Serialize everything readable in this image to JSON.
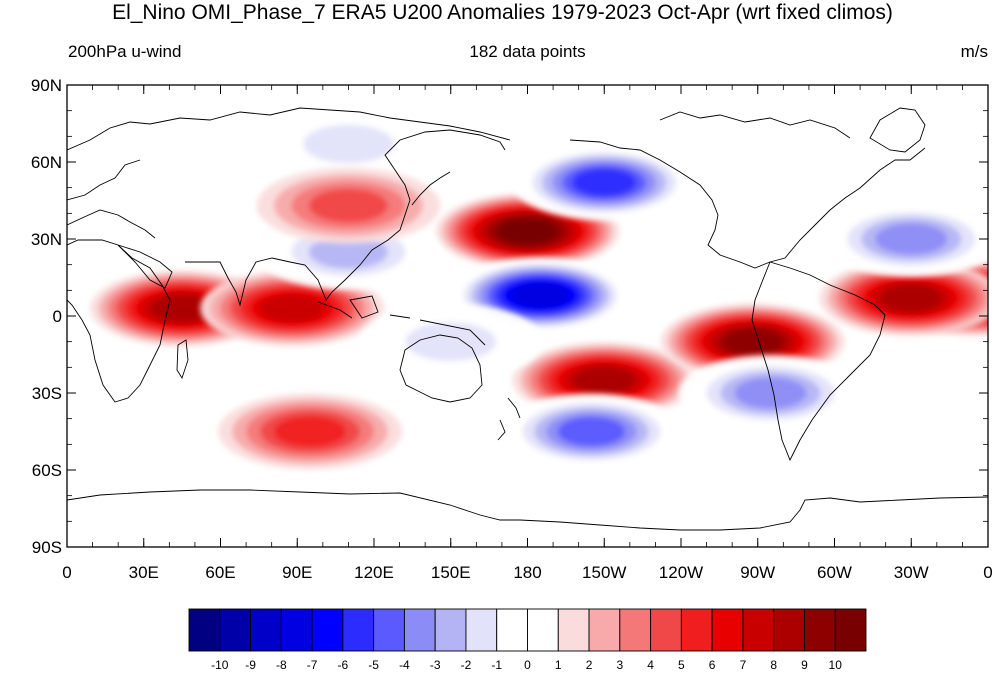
{
  "title": "El_Nino OMI_Phase_7 ERA5 U200 Anomalies 1979-2023 Oct-Apr (wrt fixed climos)",
  "subtitle_left": "200hPa u-wind",
  "subtitle_center": "182 data points",
  "subtitle_right": "m/s",
  "map": {
    "projection": "cylindrical equidistant",
    "lon_range": [
      0,
      360
    ],
    "lat_range": [
      -90,
      90
    ],
    "x_tick_labels": [
      "0",
      "30E",
      "60E",
      "90E",
      "120E",
      "150E",
      "180",
      "150W",
      "120W",
      "90W",
      "60W",
      "30W",
      "0"
    ],
    "y_tick_labels": [
      "90N",
      "60N",
      "30N",
      "0",
      "30S",
      "60S",
      "90S"
    ],
    "field_features": [
      {
        "feature": "westerly anomaly",
        "lon": 355,
        "lat": 7,
        "value": 9
      },
      {
        "feature": "westerly anomaly",
        "lon": 45,
        "lat": 3,
        "value": 8
      },
      {
        "feature": "westerly anomaly",
        "lon": 88,
        "lat": 3,
        "value": 7
      },
      {
        "feature": "westerly anomaly",
        "lon": 180,
        "lat": 33,
        "value": 10
      },
      {
        "feature": "westerly anomaly",
        "lon": 210,
        "lat": -25,
        "value": 8
      },
      {
        "feature": "westerly anomaly",
        "lon": 268,
        "lat": -10,
        "value": 9
      },
      {
        "feature": "westerly anomaly",
        "lon": 330,
        "lat": 7,
        "value": 8
      },
      {
        "feature": "easterly anomaly",
        "lon": 185,
        "lat": 8,
        "value": -9
      },
      {
        "feature": "easterly anomaly",
        "lon": 210,
        "lat": 52,
        "value": -7
      },
      {
        "feature": "easterly anomaly",
        "lon": 205,
        "lat": -45,
        "value": -6
      },
      {
        "feature": "easterly anomaly",
        "lon": 330,
        "lat": 30,
        "value": -5
      },
      {
        "feature": "easterly anomaly",
        "lon": 275,
        "lat": -30,
        "value": -5
      },
      {
        "feature": "easterly anomaly",
        "lon": 110,
        "lat": 25,
        "value": -4
      },
      {
        "feature": "easterly anomaly",
        "lon": 150,
        "lat": -10,
        "value": -3
      },
      {
        "feature": "easterly anomaly",
        "lon": 110,
        "lat": 67,
        "value": -3
      },
      {
        "feature": "westerly anomaly",
        "lon": 110,
        "lat": 43,
        "value": 4
      },
      {
        "feature": "westerly anomaly",
        "lon": 95,
        "lat": -45,
        "value": 5
      }
    ]
  },
  "colorbar": {
    "labels": [
      "-10",
      "-9",
      "-8",
      "-7",
      "-6",
      "-5",
      "-4",
      "-3",
      "-2",
      "-1",
      "0",
      "1",
      "2",
      "3",
      "4",
      "5",
      "6",
      "7",
      "8",
      "9",
      "10"
    ],
    "colors": [
      "#000080",
      "#0000a8",
      "#0000c8",
      "#0000e0",
      "#0000ff",
      "#2c2cff",
      "#5a5aff",
      "#8c8cf6",
      "#b4b4f4",
      "#e2e2fa",
      "#ffffff",
      "#ffffff",
      "#fadcdc",
      "#f8aaaa",
      "#f47878",
      "#f04848",
      "#f01e1e",
      "#e60000",
      "#c80000",
      "#aa0000",
      "#8c0000",
      "#780000"
    ]
  }
}
